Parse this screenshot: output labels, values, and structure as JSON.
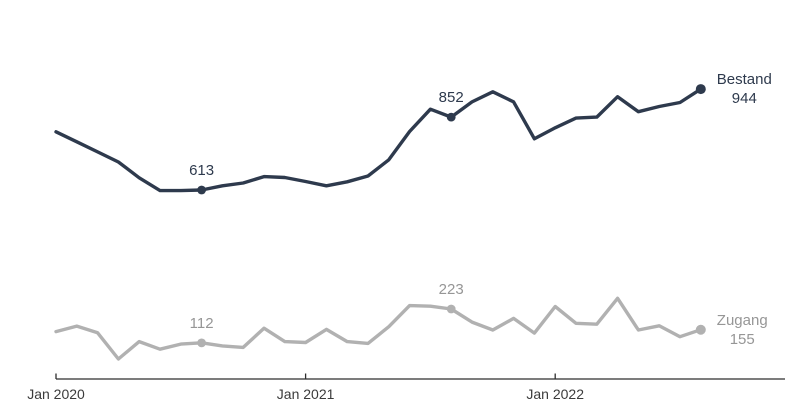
{
  "chart_data": {
    "type": "line",
    "title": "",
    "x": [
      "Jan 2020",
      "Feb 2020",
      "Mar 2020",
      "Apr 2020",
      "May 2020",
      "Jun 2020",
      "Jul 2020",
      "Aug 2020",
      "Sep 2020",
      "Oct 2020",
      "Nov 2020",
      "Dec 2020",
      "Jan 2021",
      "Feb 2021",
      "Mar 2021",
      "Apr 2021",
      "May 2021",
      "Jun 2021",
      "Jul 2021",
      "Aug 2021",
      "Sep 2021",
      "Oct 2021",
      "Nov 2021",
      "Dec 2021",
      "Jan 2022",
      "Feb 2022",
      "Mar 2022",
      "Apr 2022",
      "May 2022",
      "Jun 2022",
      "Jul 2022",
      "Aug 2022"
    ],
    "series": [
      {
        "name": "Bestand",
        "color": "#2e3a4d",
        "values": [
          804,
          771,
          738,
          705,
          653,
          611,
          611,
          613,
          627,
          636,
          657,
          654,
          641,
          627,
          640,
          659,
          712,
          805,
          878,
          852,
          902,
          935,
          902,
          781,
          817,
          849,
          852,
          919,
          870,
          887,
          900,
          944
        ]
      },
      {
        "name": "Zugang",
        "color": "#b1b1b1",
        "values": [
          149,
          167,
          145,
          59,
          116,
          91,
          108,
          112,
          102,
          97,
          160,
          116,
          113,
          156,
          116,
          110,
          165,
          234,
          232,
          223,
          180,
          154,
          192,
          144,
          231,
          176,
          173,
          258,
          154,
          168,
          132,
          155
        ]
      }
    ],
    "axis": {
      "ticks": [
        {
          "label": "Jan 2020",
          "month_index": 0
        },
        {
          "label": "Jan 2021",
          "month_index": 12
        },
        {
          "label": "Jan 2022",
          "month_index": 24
        }
      ],
      "line_color": "#2e2e2e",
      "label_color": "#3b3b3b"
    },
    "point_labels": [
      {
        "series": "Bestand",
        "month_index": 7,
        "text": "613"
      },
      {
        "series": "Bestand",
        "month_index": 19,
        "text": "852"
      },
      {
        "series": "Zugang",
        "month_index": 7,
        "text": "112"
      },
      {
        "series": "Zugang",
        "month_index": 19,
        "text": "223"
      }
    ],
    "end_labels": [
      {
        "series": "Bestand",
        "value": "944"
      },
      {
        "series": "Zugang",
        "value": "155"
      }
    ],
    "ylim": [
      0,
      1170
    ],
    "grid": false,
    "legend_position": "end-of-line"
  }
}
